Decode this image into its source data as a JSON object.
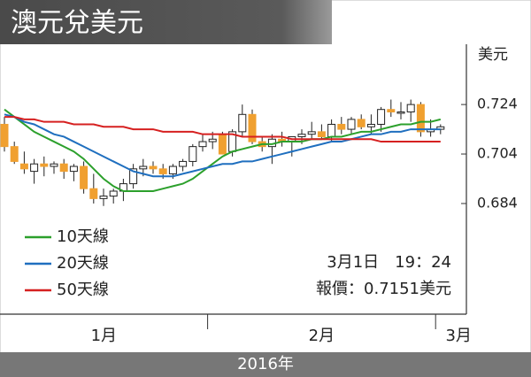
{
  "chart_data": {
    "type": "candlestick",
    "title": "澳元兌美元",
    "y_axis_label": "美元",
    "ylim": [
      0.64,
      0.748
    ],
    "yticks": [
      0.724,
      0.704,
      0.684
    ],
    "months": [
      "1月",
      "2月",
      "3月"
    ],
    "month_starts": [
      0,
      21,
      44
    ],
    "year_label": "2016年",
    "annotations": [
      "3月1日　19：24",
      "報價：0.7151美元"
    ],
    "up_color": "#ffffff",
    "down_color": "#f0a030",
    "candles": {
      "open": [
        0.716,
        0.707,
        0.7,
        0.697,
        0.7,
        0.699,
        0.7,
        0.697,
        0.699,
        0.69,
        0.686,
        0.687,
        0.689,
        0.692,
        0.698,
        0.699,
        0.698,
        0.696,
        0.699,
        0.701,
        0.707,
        0.709,
        0.712,
        0.705,
        0.713,
        0.72,
        0.709,
        0.707,
        0.71,
        0.709,
        0.711,
        0.712,
        0.713,
        0.711,
        0.716,
        0.714,
        0.718,
        0.715,
        0.716,
        0.722,
        0.721,
        0.721,
        0.724,
        0.713,
        0.714
      ],
      "high": [
        0.719,
        0.709,
        0.705,
        0.702,
        0.703,
        0.701,
        0.702,
        0.7,
        0.701,
        0.696,
        0.69,
        0.69,
        0.694,
        0.7,
        0.702,
        0.701,
        0.7,
        0.7,
        0.702,
        0.708,
        0.712,
        0.713,
        0.713,
        0.714,
        0.724,
        0.722,
        0.711,
        0.712,
        0.713,
        0.711,
        0.714,
        0.717,
        0.716,
        0.718,
        0.719,
        0.719,
        0.72,
        0.72,
        0.723,
        0.726,
        0.725,
        0.726,
        0.725,
        0.718,
        0.716
      ],
      "low": [
        0.705,
        0.7,
        0.696,
        0.692,
        0.695,
        0.696,
        0.694,
        0.693,
        0.688,
        0.684,
        0.683,
        0.684,
        0.685,
        0.69,
        0.695,
        0.696,
        0.694,
        0.694,
        0.697,
        0.699,
        0.705,
        0.706,
        0.704,
        0.703,
        0.711,
        0.708,
        0.705,
        0.7,
        0.707,
        0.703,
        0.708,
        0.71,
        0.71,
        0.709,
        0.712,
        0.712,
        0.714,
        0.712,
        0.713,
        0.719,
        0.718,
        0.717,
        0.711,
        0.711,
        0.712
      ],
      "close": [
        0.707,
        0.701,
        0.698,
        0.7,
        0.699,
        0.7,
        0.697,
        0.699,
        0.69,
        0.686,
        0.687,
        0.689,
        0.692,
        0.698,
        0.699,
        0.698,
        0.696,
        0.699,
        0.701,
        0.707,
        0.709,
        0.71,
        0.704,
        0.713,
        0.72,
        0.709,
        0.707,
        0.71,
        0.709,
        0.711,
        0.712,
        0.713,
        0.711,
        0.716,
        0.714,
        0.718,
        0.715,
        0.716,
        0.722,
        0.721,
        0.721,
        0.724,
        0.713,
        0.714,
        0.715
      ]
    },
    "series": [
      {
        "name": "10天線",
        "color": "#2ca02c",
        "values": [
          0.722,
          0.719,
          0.716,
          0.713,
          0.711,
          0.709,
          0.707,
          0.705,
          0.702,
          0.698,
          0.694,
          0.691,
          0.689,
          0.689,
          0.689,
          0.689,
          0.69,
          0.691,
          0.692,
          0.694,
          0.697,
          0.7,
          0.703,
          0.705,
          0.706,
          0.707,
          0.708,
          0.708,
          0.709,
          0.709,
          0.709,
          0.71,
          0.71,
          0.711,
          0.711,
          0.712,
          0.713,
          0.713,
          0.714,
          0.715,
          0.716,
          0.716,
          0.717,
          0.717,
          0.718
        ]
      },
      {
        "name": "20天線",
        "color": "#1f6fbf",
        "values": [
          0.72,
          0.719,
          0.717,
          0.716,
          0.714,
          0.712,
          0.711,
          0.709,
          0.707,
          0.705,
          0.703,
          0.701,
          0.699,
          0.697,
          0.696,
          0.695,
          0.695,
          0.695,
          0.696,
          0.697,
          0.698,
          0.699,
          0.7,
          0.7,
          0.701,
          0.701,
          0.702,
          0.703,
          0.704,
          0.705,
          0.706,
          0.707,
          0.708,
          0.709,
          0.709,
          0.71,
          0.711,
          0.712,
          0.712,
          0.713,
          0.713,
          0.714,
          0.714,
          0.714,
          0.714
        ]
      },
      {
        "name": "50天線",
        "color": "#d62020",
        "values": [
          0.719,
          0.719,
          0.718,
          0.718,
          0.717,
          0.717,
          0.717,
          0.716,
          0.716,
          0.716,
          0.715,
          0.715,
          0.715,
          0.714,
          0.714,
          0.714,
          0.713,
          0.713,
          0.713,
          0.713,
          0.712,
          0.712,
          0.712,
          0.712,
          0.711,
          0.711,
          0.711,
          0.711,
          0.711,
          0.71,
          0.71,
          0.71,
          0.71,
          0.71,
          0.71,
          0.71,
          0.71,
          0.71,
          0.709,
          0.709,
          0.709,
          0.709,
          0.709,
          0.709,
          0.709
        ]
      }
    ]
  }
}
